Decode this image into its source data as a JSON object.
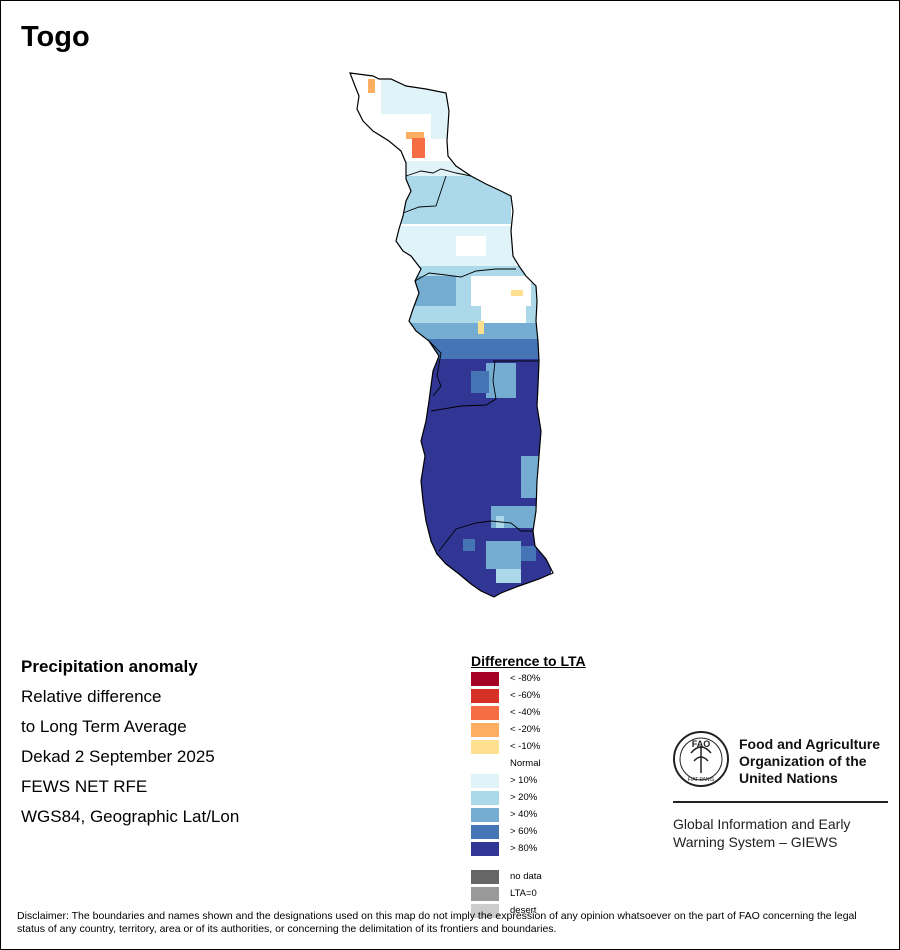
{
  "title": "Togo",
  "info": {
    "line1": "Precipitation anomaly",
    "line2": "Relative difference",
    "line3": "to Long Term Average",
    "line4": "Dekad 2 September 2025",
    "line5": "FEWS NET RFE",
    "line6": "WGS84, Geographic Lat/Lon"
  },
  "legend": {
    "title": "Difference to LTA",
    "items": [
      {
        "label": "< -80%",
        "color": "#A50026"
      },
      {
        "label": "< -60%",
        "color": "#D73027"
      },
      {
        "label": "< -40%",
        "color": "#F46D43"
      },
      {
        "label": "< -20%",
        "color": "#FDAE61"
      },
      {
        "label": "< -10%",
        "color": "#FEE090"
      },
      {
        "label": "Normal",
        "color": "#FFFFFF"
      },
      {
        "label": "> 10%",
        "color": "#E0F3F8"
      },
      {
        "label": "> 20%",
        "color": "#ABD9E9"
      },
      {
        "label": "> 40%",
        "color": "#74ADD1"
      },
      {
        "label": "> 60%",
        "color": "#4575B4"
      },
      {
        "label": "> 80%",
        "color": "#313695"
      }
    ],
    "extra": [
      {
        "label": "no data",
        "color": "#666666"
      },
      {
        "label": "LTA=0",
        "color": "#999999"
      },
      {
        "label": "desert",
        "color": "#CCCCCC"
      }
    ]
  },
  "fao": {
    "logo_top": "FAO",
    "logo_bottom": "FIAT PANIS",
    "org_line1": "Food and Agriculture",
    "org_line2": "Organization of the",
    "org_line3": "United Nations",
    "giews_line1": "Global Information and Early",
    "giews_line2": "Warning System – GIEWS"
  },
  "disclaimer": "Disclaimer: The boundaries and names shown and the designations used on this map do not imply the expression of any opinion whatsoever on the part of FAO concerning the legal status of any country, territory, area or of its authorities, or concerning the delimitation of its frontiers and boundaries."
}
